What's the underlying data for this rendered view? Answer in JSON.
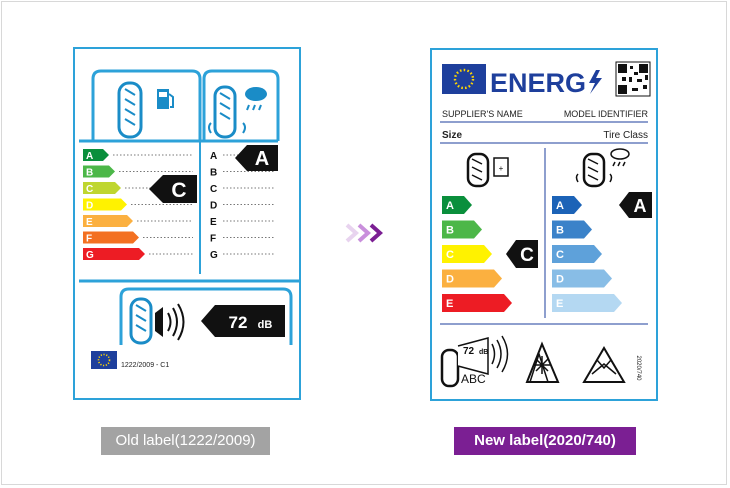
{
  "old_label": {
    "caption": "Old label(1222/2009)",
    "classes": [
      "A",
      "B",
      "C",
      "D",
      "E",
      "F",
      "G"
    ],
    "fuel_rating": "C",
    "wet_rating": "A",
    "noise_value": "72",
    "noise_unit": "dB",
    "regulation": "1222/2009 - C1",
    "colors": {
      "A": "#0a8f3c",
      "B": "#4cb748",
      "C": "#bfd62f",
      "D": "#fff200",
      "E": "#fbb040",
      "F": "#f37021",
      "G": "#ed1c24"
    }
  },
  "new_label": {
    "caption": "New label(2020/740)",
    "title": "ENERG",
    "supplier": "SUPPLIER'S NAME",
    "model": "MODEL IDENTIFIER",
    "size": "Size",
    "tire_class": "Tire Class",
    "fuel_classes": [
      "A",
      "B",
      "C",
      "D",
      "E"
    ],
    "wet_classes": [
      "A",
      "B",
      "C",
      "D",
      "E"
    ],
    "fuel_rating": "C",
    "wet_rating": "A",
    "noise_value": "72",
    "noise_unit": "dB",
    "noise_class": "ABC",
    "regulation": "2020/740",
    "fuel_colors": {
      "A": "#0a8f3c",
      "B": "#4cb748",
      "C": "#fff200",
      "D": "#fbb040",
      "E": "#ed1c24"
    },
    "wet_colors": {
      "A": "#1c63b7",
      "B": "#3b82c9",
      "C": "#5ea1da",
      "D": "#88bde6",
      "E": "#b4d8f2"
    }
  }
}
